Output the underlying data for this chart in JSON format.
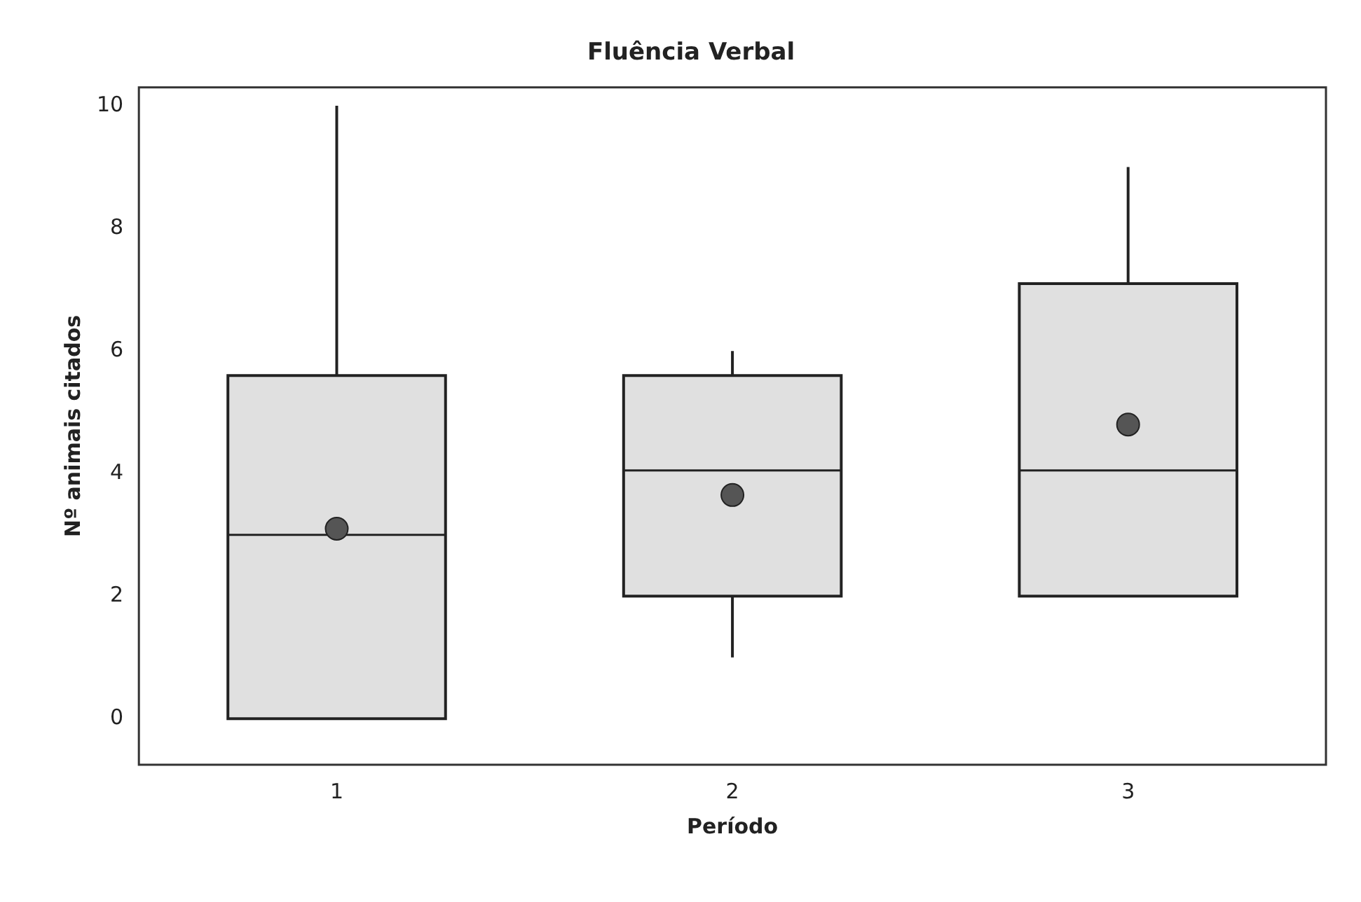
{
  "chart_data": {
    "type": "box",
    "title": "Fluência Verbal",
    "xlabel": "Período",
    "ylabel": "Nº animais citados",
    "categories": [
      "1",
      "2",
      "3"
    ],
    "boxes": [
      {
        "low": 0,
        "q1": 0,
        "median": 3,
        "q3": 5.6,
        "high": 10,
        "mean": 3.1
      },
      {
        "low": 1,
        "q1": 2,
        "median": 4.05,
        "q3": 5.6,
        "high": 6,
        "mean": 3.65
      },
      {
        "low": 2,
        "q1": 2,
        "median": 4.05,
        "q3": 7.1,
        "high": 9,
        "mean": 4.8
      }
    ],
    "color": "#e0e0e0",
    "ylim": [
      -0.75,
      10.3
    ],
    "yticks": [
      0,
      2,
      4,
      6,
      8,
      10
    ],
    "grid": false,
    "legend": false
  }
}
